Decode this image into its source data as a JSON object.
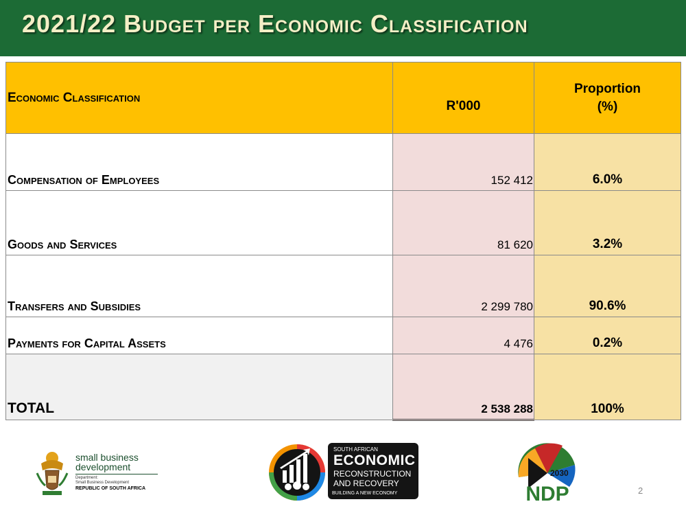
{
  "title": "2021/22 Budget per Economic Classification",
  "table": {
    "headers": {
      "classification": "Economic Classification",
      "rand": "R'000",
      "proportion_line1": "Proportion",
      "proportion_line2": "(%)"
    },
    "rows": [
      {
        "label": "Compensation of Employees",
        "value": "152 412",
        "proportion": "6.0%"
      },
      {
        "label": "Goods and Services",
        "value": "81 620",
        "proportion": "3.2%"
      },
      {
        "label": "Transfers and Subsidies",
        "value": "2 299 780",
        "proportion": "90.6%"
      },
      {
        "label": "Payments for Capital Assets",
        "value": "4 476",
        "proportion": "0.2%"
      }
    ],
    "total": {
      "label": "TOTAL",
      "value": "2 538 288",
      "proportion": "100%"
    }
  },
  "footer": {
    "dsbd": {
      "line1": "small business",
      "line2": "development",
      "sub1": "Department:",
      "sub2": "Small Business Development",
      "country": "REPUBLIC OF SOUTH AFRICA"
    },
    "err": {
      "top": "SOUTH AFRICAN",
      "big": "ECONOMIC",
      "mid1": "RECONSTRUCTION",
      "mid2": "AND RECOVERY",
      "bottom": "BUILDING A NEW ECONOMY"
    },
    "ndp": {
      "year": "2030",
      "text": "NDP"
    },
    "page_number": "2"
  },
  "colors": {
    "title_bar": "#1c6b35",
    "title_text": "#f4efc6",
    "header_fill": "#ffc000",
    "value_fill": "#f2dcdb",
    "proportion_fill": "#f7e1a4"
  }
}
